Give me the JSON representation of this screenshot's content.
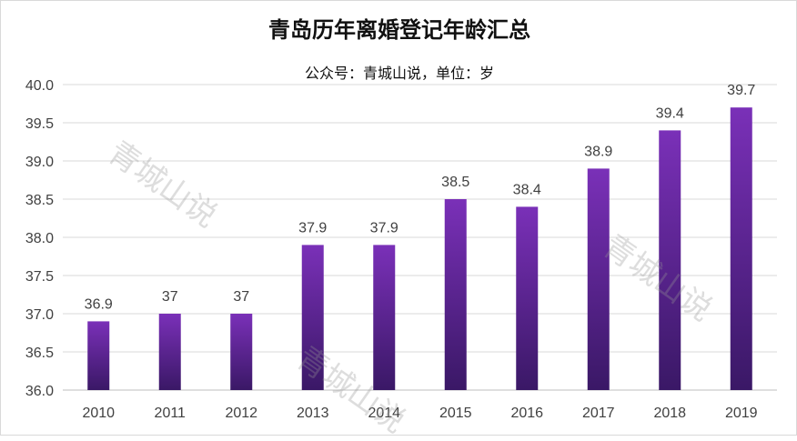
{
  "chart_data": {
    "type": "bar",
    "title": "青岛历年离婚登记年龄汇总",
    "subtitle": "公众号：青城山说，单位：岁",
    "categories": [
      "2010",
      "2011",
      "2012",
      "2013",
      "2014",
      "2015",
      "2016",
      "2017",
      "2018",
      "2019"
    ],
    "values": [
      36.9,
      37,
      37,
      37.9,
      37.9,
      38.5,
      38.4,
      38.9,
      39.4,
      39.7
    ],
    "data_labels": [
      "36.9",
      "37",
      "37",
      "37.9",
      "37.9",
      "38.5",
      "38.4",
      "38.9",
      "39.4",
      "39.7"
    ],
    "ylim": [
      36.0,
      40.0
    ],
    "yticks": [
      "36.0",
      "36.5",
      "37.0",
      "37.5",
      "38.0",
      "38.5",
      "39.0",
      "39.5",
      "40.0"
    ],
    "grid": true,
    "legend": "none",
    "bar_color_top": "#7a30b8",
    "bar_color_bottom": "#3a1866"
  },
  "watermark": "青城山说"
}
